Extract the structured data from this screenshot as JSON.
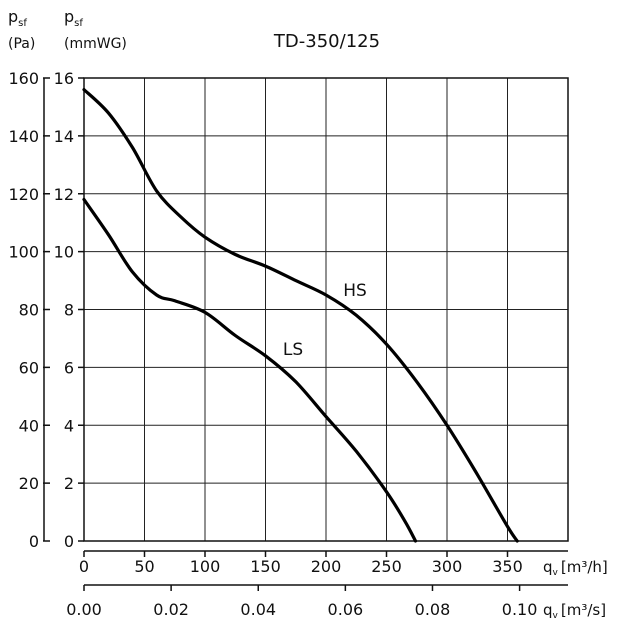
{
  "chart_data": {
    "type": "line",
    "title": "TD-350/125",
    "colors": {
      "curve": "#000000",
      "grid": "#222222"
    },
    "y_axis_pa": {
      "label_main": "p",
      "label_sub": "sf",
      "unit": "(Pa)",
      "range": [
        0,
        160
      ],
      "ticks": [
        "0",
        "20",
        "40",
        "60",
        "80",
        "100",
        "120",
        "140",
        "160"
      ]
    },
    "y_axis_mmwg": {
      "label_main": "p",
      "label_sub": "sf",
      "unit": "(mmWG)",
      "range": [
        0,
        16
      ],
      "ticks": [
        "0",
        "2",
        "4",
        "6",
        "8",
        "10",
        "12",
        "14",
        "16"
      ]
    },
    "x_axis_m3h": {
      "label_main": "q",
      "label_sub": "v",
      "unit": "[m³/h]",
      "range": [
        0,
        400
      ],
      "ticks": [
        "0",
        "50",
        "100",
        "150",
        "200",
        "250",
        "300",
        "350"
      ]
    },
    "x_axis_m3s": {
      "label_main": "q",
      "label_sub": "v",
      "unit": "[m³/s]",
      "ticks": [
        "0.00",
        "0.02",
        "0.04",
        "0.06",
        "0.08",
        "0.10"
      ],
      "tick_values_m3h": [
        0,
        72,
        144,
        216,
        288,
        360
      ]
    },
    "series": [
      {
        "name": "HS",
        "x": [
          0,
          20,
          40,
          60,
          80,
          100,
          125,
          150,
          175,
          200,
          225,
          250,
          275,
          300,
          325,
          350,
          358
        ],
        "y_mmwg": [
          15.6,
          14.8,
          13.6,
          12.1,
          11.2,
          10.5,
          9.9,
          9.5,
          9.0,
          8.5,
          7.8,
          6.8,
          5.5,
          4.0,
          2.3,
          0.5,
          0.0
        ]
      },
      {
        "name": "LS",
        "x": [
          0,
          20,
          40,
          60,
          75,
          100,
          125,
          150,
          175,
          200,
          225,
          250,
          265,
          274
        ],
        "y_mmwg": [
          11.8,
          10.6,
          9.3,
          8.5,
          8.3,
          7.9,
          7.1,
          6.4,
          5.5,
          4.3,
          3.1,
          1.7,
          0.7,
          0.0
        ]
      }
    ]
  }
}
